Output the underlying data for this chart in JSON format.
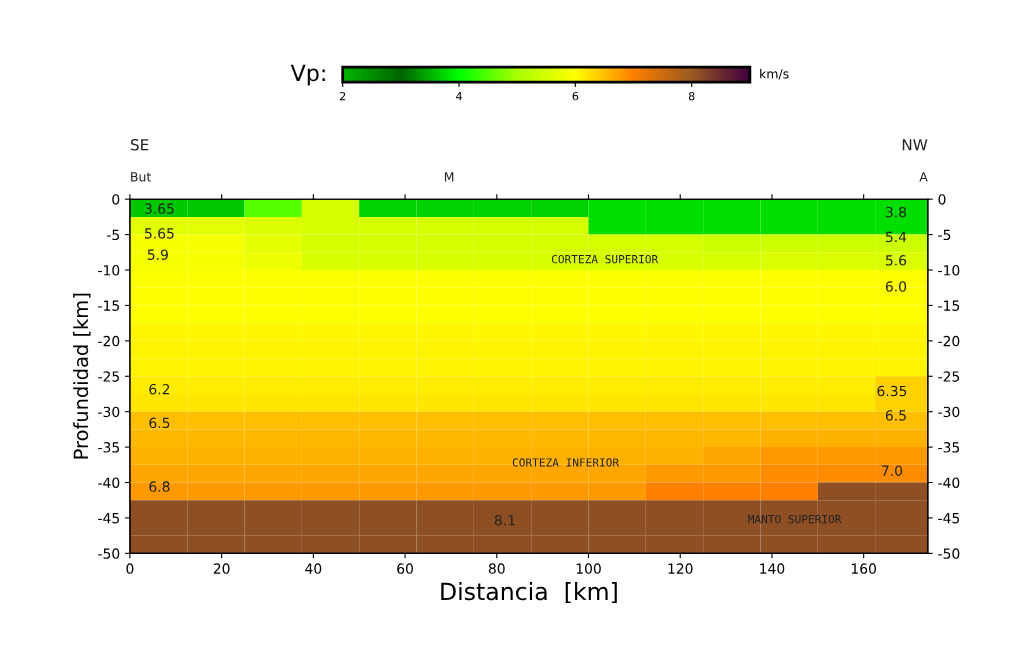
{
  "chart_data": {
    "type": "heatmap",
    "title": "Vp:",
    "clabel": "km/s",
    "xlabel": "Distancia  [km]",
    "ylabel": "Profundidad [km]",
    "clim": [
      2,
      9
    ],
    "cticks": [
      2,
      4,
      6,
      8
    ],
    "xlim": [
      0,
      174
    ],
    "xticks": [
      0,
      20,
      40,
      60,
      80,
      100,
      120,
      140,
      160
    ],
    "ylim": [
      -50,
      0
    ],
    "yticks": [
      0,
      -5,
      -10,
      -15,
      -20,
      -25,
      -30,
      -35,
      -40,
      -45,
      -50
    ],
    "y2lim": [
      -50,
      0
    ],
    "y2ticks": [
      0,
      -5,
      -10,
      -15,
      -20,
      -25,
      -30,
      -35,
      -40,
      -45,
      -50
    ],
    "x": [
      6.25,
      18.75,
      31.25,
      43.75,
      56.25,
      68.75,
      81.25,
      93.75,
      106.25,
      118.75,
      131.25,
      143.75,
      156.25,
      168.75
    ],
    "y": [
      -1.25,
      -3.75,
      -6.25,
      -8.75,
      -11.25,
      -13.75,
      -16.25,
      -18.75,
      -21.25,
      -23.75,
      -26.25,
      -28.75,
      -31.25,
      -33.75,
      -36.25,
      -38.75,
      -41.25,
      -43.75,
      -46.25,
      -48.75
    ],
    "cells": [
      [
        3.65,
        3.65,
        4.5,
        5.5,
        3.7,
        3.7,
        3.7,
        3.7,
        3.8,
        3.8,
        3.8,
        3.8,
        3.8,
        3.8
      ],
      [
        5.65,
        5.65,
        5.6,
        5.5,
        5.5,
        5.5,
        5.5,
        5.5,
        3.8,
        3.8,
        3.8,
        3.8,
        3.8,
        3.8
      ],
      [
        5.9,
        5.9,
        5.7,
        5.5,
        5.5,
        5.5,
        5.5,
        5.5,
        5.5,
        5.5,
        5.4,
        5.4,
        5.4,
        5.4
      ],
      [
        5.9,
        5.9,
        5.8,
        5.55,
        5.55,
        5.55,
        5.55,
        5.55,
        5.55,
        5.55,
        5.55,
        5.6,
        5.6,
        5.6
      ],
      [
        5.95,
        5.95,
        5.95,
        5.95,
        5.95,
        5.95,
        5.95,
        5.95,
        5.95,
        5.95,
        5.95,
        6.0,
        6.0,
        6.0
      ],
      [
        6.0,
        6.0,
        6.0,
        6.0,
        6.0,
        6.0,
        6.0,
        6.0,
        6.0,
        6.0,
        6.0,
        6.0,
        6.0,
        6.0
      ],
      [
        6.0,
        6.0,
        6.0,
        6.0,
        6.0,
        6.0,
        6.0,
        6.0,
        6.0,
        6.0,
        6.0,
        6.0,
        6.0,
        6.0
      ],
      [
        6.05,
        6.05,
        6.05,
        6.05,
        6.05,
        6.05,
        6.05,
        6.05,
        6.05,
        6.05,
        6.05,
        6.05,
        6.05,
        6.05
      ],
      [
        6.1,
        6.1,
        6.1,
        6.1,
        6.1,
        6.1,
        6.1,
        6.1,
        6.1,
        6.1,
        6.1,
        6.1,
        6.1,
        6.1
      ],
      [
        6.1,
        6.1,
        6.1,
        6.1,
        6.1,
        6.1,
        6.1,
        6.1,
        6.1,
        6.1,
        6.1,
        6.1,
        6.1,
        6.1
      ],
      [
        6.15,
        6.15,
        6.15,
        6.15,
        6.15,
        6.15,
        6.15,
        6.15,
        6.15,
        6.15,
        6.15,
        6.15,
        6.15,
        6.35
      ],
      [
        6.2,
        6.2,
        6.2,
        6.2,
        6.2,
        6.2,
        6.2,
        6.2,
        6.2,
        6.2,
        6.2,
        6.2,
        6.2,
        6.35
      ],
      [
        6.5,
        6.5,
        6.5,
        6.5,
        6.5,
        6.5,
        6.5,
        6.5,
        6.5,
        6.5,
        6.5,
        6.5,
        6.5,
        6.5
      ],
      [
        6.55,
        6.55,
        6.55,
        6.55,
        6.55,
        6.55,
        6.55,
        6.55,
        6.55,
        6.55,
        6.55,
        6.6,
        6.6,
        6.6
      ],
      [
        6.6,
        6.6,
        6.6,
        6.6,
        6.6,
        6.6,
        6.6,
        6.6,
        6.6,
        6.6,
        6.7,
        6.8,
        6.8,
        6.8
      ],
      [
        6.7,
        6.7,
        6.7,
        6.7,
        6.7,
        6.7,
        6.7,
        6.7,
        6.7,
        6.8,
        6.8,
        6.9,
        6.9,
        6.9
      ],
      [
        6.8,
        6.8,
        6.8,
        6.8,
        6.8,
        6.8,
        6.8,
        6.8,
        6.8,
        7.0,
        7.0,
        7.0,
        8.1,
        8.1
      ],
      [
        8.1,
        8.1,
        8.1,
        8.1,
        8.1,
        8.1,
        8.1,
        8.1,
        8.1,
        8.1,
        8.1,
        8.1,
        8.1,
        8.1
      ],
      [
        8.1,
        8.1,
        8.1,
        8.1,
        8.1,
        8.1,
        8.1,
        8.1,
        8.1,
        8.1,
        8.1,
        8.1,
        8.1,
        8.1
      ],
      [
        8.1,
        8.1,
        8.1,
        8.1,
        8.1,
        8.1,
        8.1,
        8.1,
        8.1,
        8.1,
        8.1,
        8.1,
        8.1,
        8.1
      ]
    ],
    "annotations": [
      "SE",
      "NW",
      "But",
      "M",
      "A",
      "3.65",
      "5.65",
      "5.9",
      "6.2",
      "6.5",
      "6.8",
      "3.8",
      "5.4",
      "5.6",
      "6.0",
      "6.35",
      "6.5",
      "7.0",
      "8.1",
      "CORTEZA SUPERIOR",
      "CORTEZA INFERIOR",
      "MANTO SUPERIOR"
    ]
  }
}
